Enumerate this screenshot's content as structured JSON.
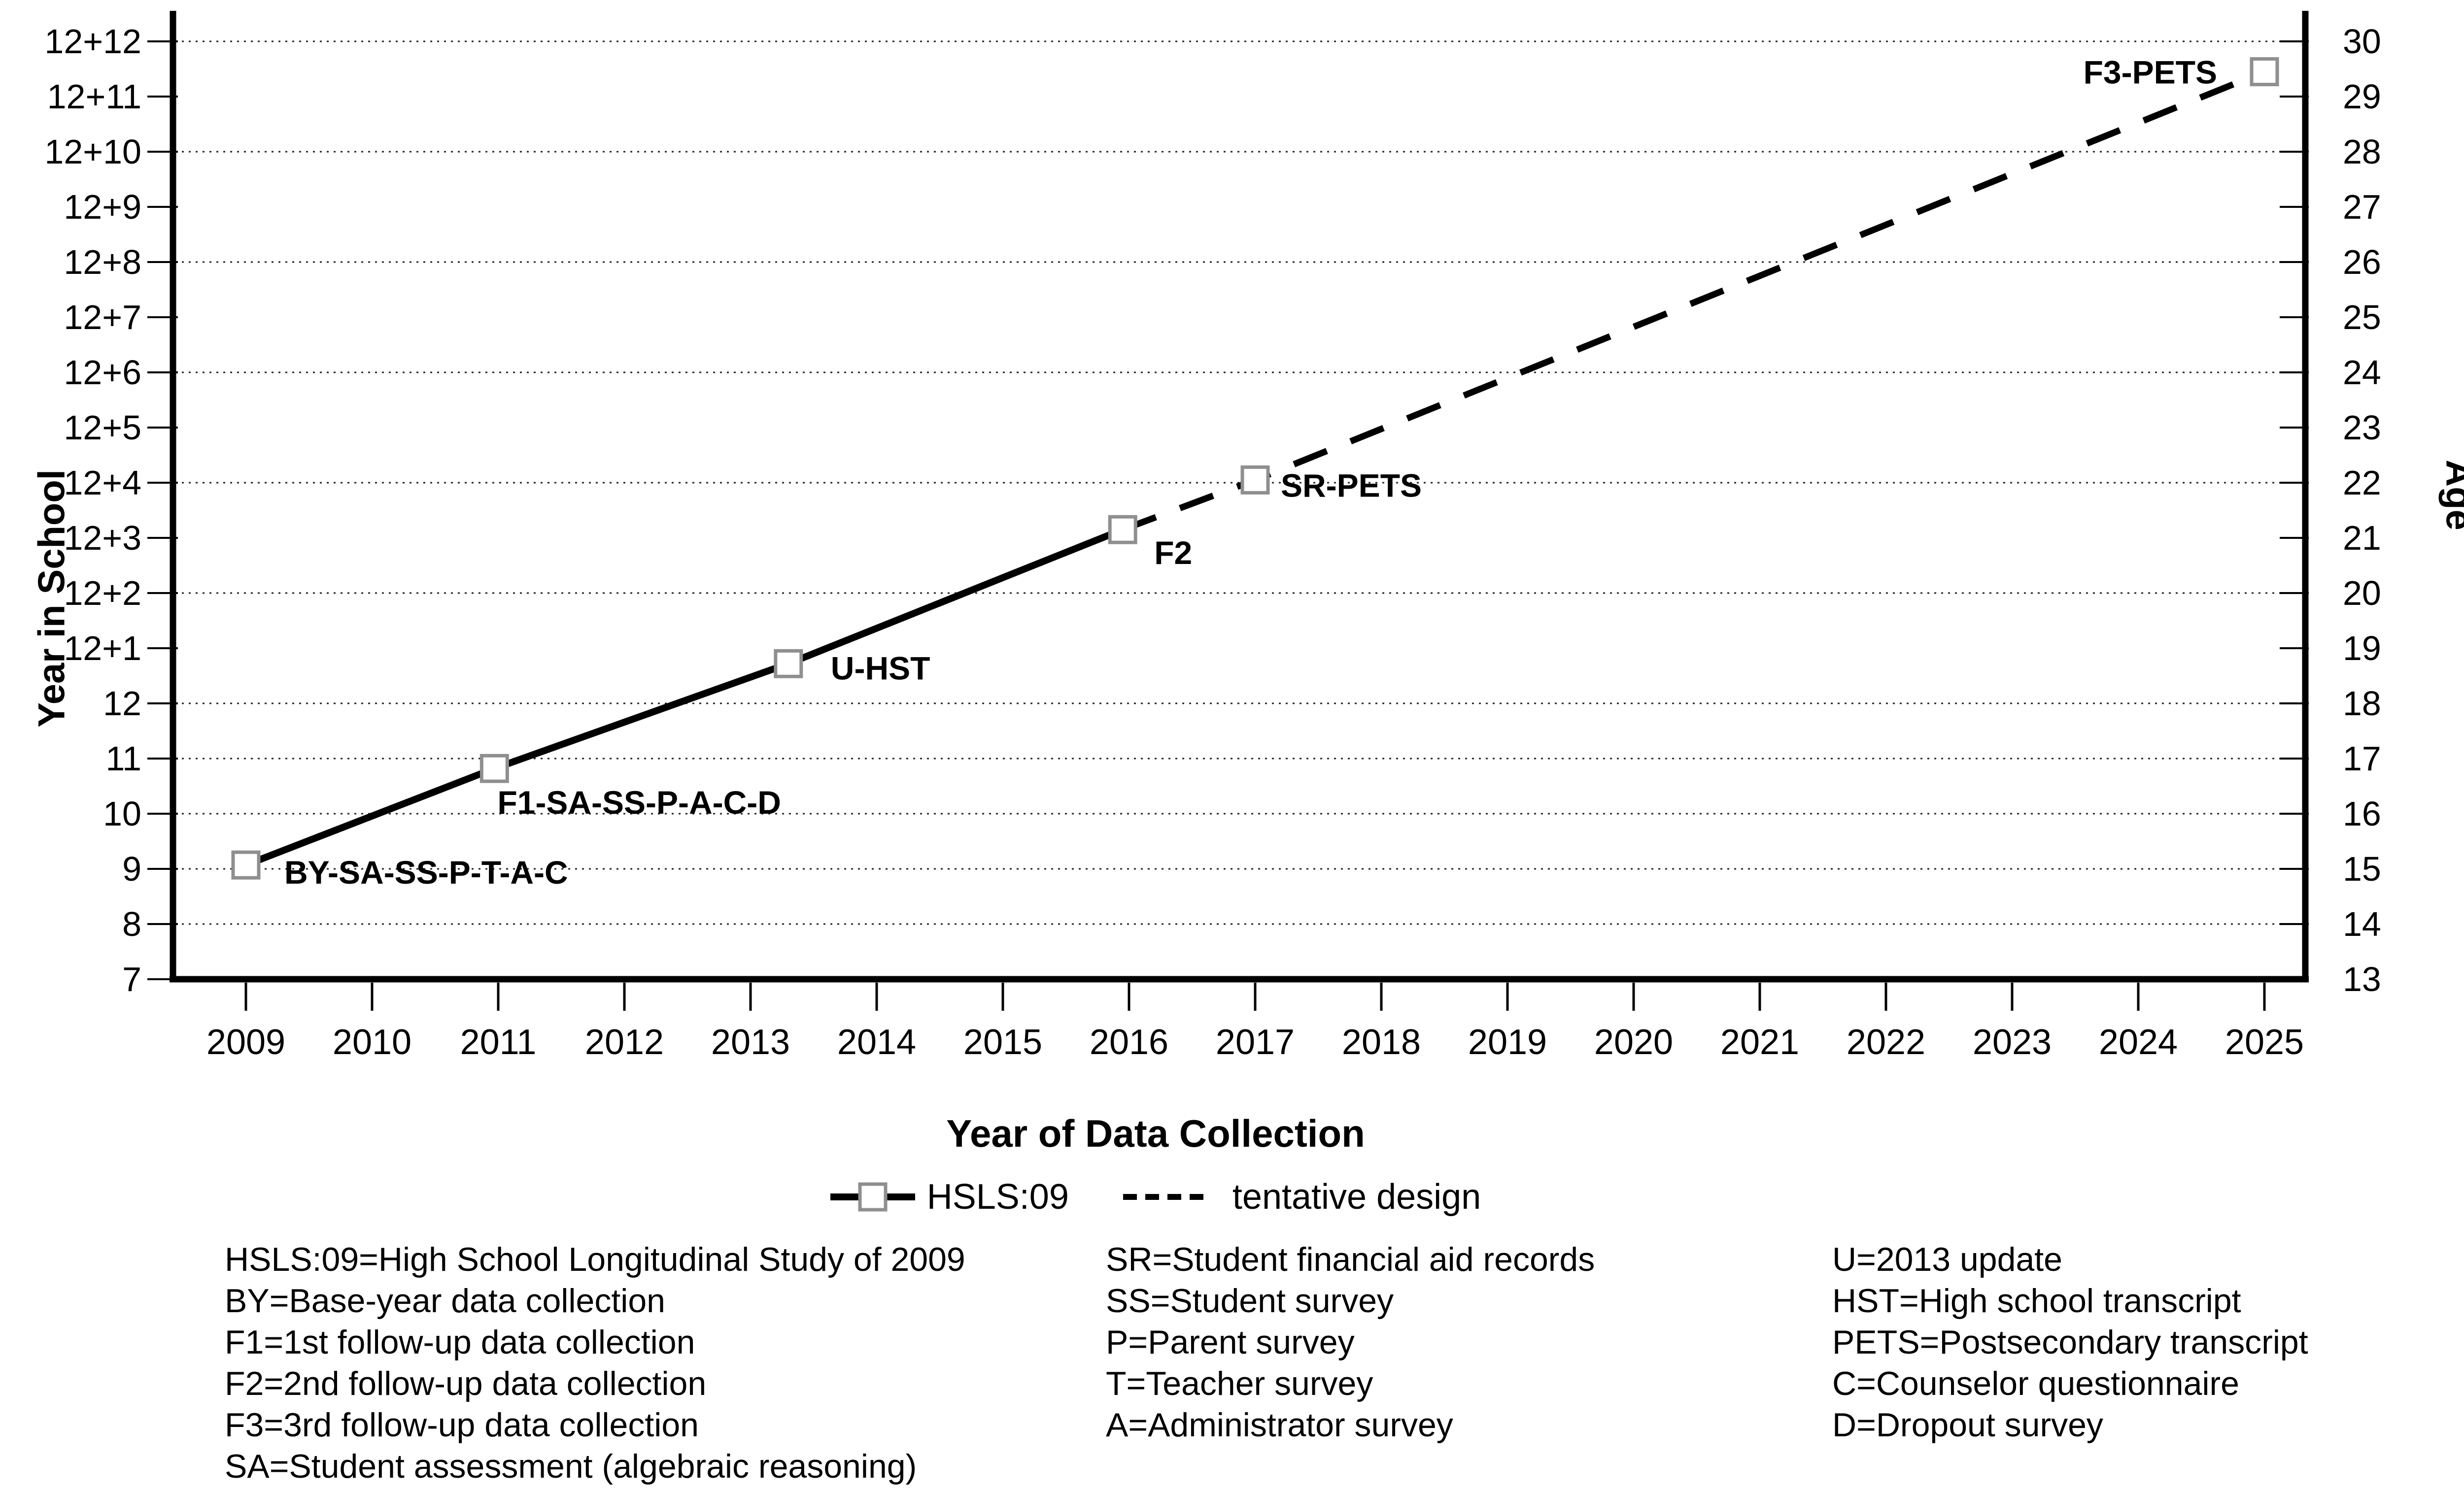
{
  "chart_data": {
    "type": "line",
    "title": "",
    "xlabel": "Year of Data Collection",
    "ylabel_left": "Year in School",
    "ylabel_right": "Age",
    "x_ticks": [
      "2009",
      "2010",
      "2011",
      "2012",
      "2013",
      "2014",
      "2015",
      "2016",
      "2017",
      "2018",
      "2019",
      "2020",
      "2021",
      "2022",
      "2023",
      "2024",
      "2025"
    ],
    "y_ticks_left": [
      "7",
      "8",
      "9",
      "10",
      "11",
      "12",
      "12+1",
      "12+2",
      "12+3",
      "12+4",
      "12+5",
      "12+6",
      "12+7",
      "12+8",
      "12+9",
      "12+10",
      "12+11",
      "12+12"
    ],
    "y_ticks_right": [
      "13",
      "14",
      "15",
      "16",
      "17",
      "18",
      "19",
      "20",
      "21",
      "22",
      "23",
      "24",
      "25",
      "26",
      "27",
      "28",
      "29",
      "30"
    ],
    "gridline_rows": [
      1,
      2,
      3,
      4,
      5,
      7,
      9,
      11,
      13,
      15,
      17
    ],
    "axis_color": "#000000",
    "grid_color": "#222222",
    "marker": {
      "fill": "#ffffff",
      "border": "#8f8f8f",
      "size": 52
    },
    "series": [
      {
        "name": "HSLS:09",
        "style": "solid",
        "points": [
          {
            "x": 2009.0,
            "y": 2.07,
            "label": "BY-SA-SS-P-T-A-C",
            "label_side": "right",
            "label_dx": 78,
            "label_dy": 38
          },
          {
            "x": 2010.97,
            "y": 3.82,
            "label": "F1-SA-SS-P-A-C-D",
            "label_side": "right",
            "label_dx": 6,
            "label_dy": 92
          },
          {
            "x": 2013.3,
            "y": 5.72,
            "label": "U-HST",
            "label_side": "right",
            "label_dx": 86,
            "label_dy": 32
          },
          {
            "x": 2015.95,
            "y": 8.15,
            "label": "F2",
            "label_side": "right",
            "label_dx": 64,
            "label_dy": 70
          }
        ]
      },
      {
        "name": "tentative design",
        "style": "dashed",
        "points": [
          {
            "x": 2015.95,
            "y": 8.15,
            "label": "",
            "label_side": "right",
            "label_dx": 0,
            "label_dy": 0
          },
          {
            "x": 2017.0,
            "y": 9.05,
            "label": "SR-PETS",
            "label_side": "right",
            "label_dx": 52,
            "label_dy": 34
          },
          {
            "x": 2025.0,
            "y": 16.45,
            "label": "F3-PETS",
            "label_side": "left",
            "label_dx": -96,
            "label_dy": 24
          }
        ]
      }
    ],
    "legend": [
      {
        "label": "HSLS:09",
        "sample": "solid-with-marker"
      },
      {
        "label": "tentative design",
        "sample": "dashed"
      }
    ]
  },
  "footnotes": {
    "col1": [
      "HSLS:09=High School Longitudinal Study of 2009",
      "BY=Base-year data collection",
      "F1=1st follow-up data collection",
      "F2=2nd follow-up data collection",
      "F3=3rd follow-up data collection",
      "SA=Student assessment (algebraic reasoning)"
    ],
    "col2": [
      "SR=Student financial aid records",
      "SS=Student survey",
      "P=Parent survey",
      "T=Teacher survey",
      "A=Administrator survey"
    ],
    "col3": [
      "U=2013 update",
      "HST=High school transcript",
      "PETS=Postsecondary transcript",
      "C=Counselor questionnaire",
      "D=Dropout survey"
    ]
  }
}
